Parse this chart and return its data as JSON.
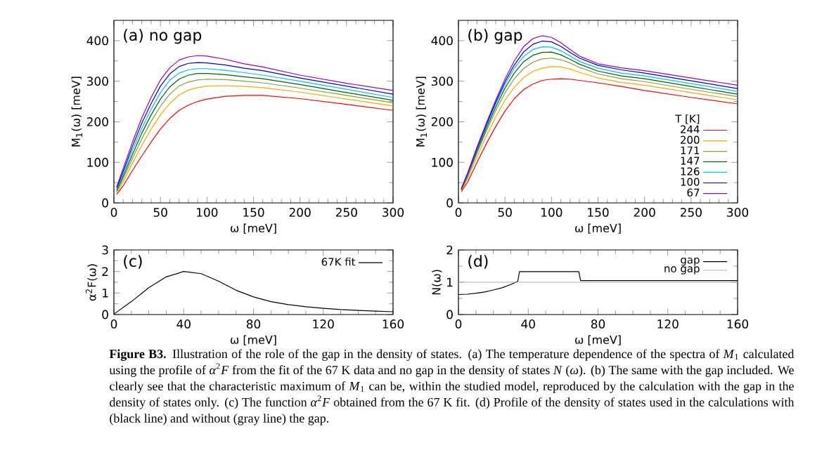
{
  "chart_data": [
    {
      "type": "line",
      "title": "(a) no gap",
      "xlabel": "ω [meV]",
      "ylabel": "M$_{1}$(ω) [meV]",
      "xlim": [
        0,
        300
      ],
      "ylim": [
        0,
        450
      ],
      "xticks": [
        0,
        50,
        100,
        150,
        200,
        250,
        300
      ],
      "yticks": [
        0,
        100,
        200,
        300,
        400
      ],
      "grid": false,
      "legend": false,
      "marker": "none",
      "line_style": "solid",
      "x": [
        3,
        10,
        20,
        30,
        40,
        50,
        60,
        70,
        80,
        90,
        100,
        120,
        140,
        160,
        200,
        250,
        300
      ],
      "series": [
        {
          "color": "#ff0000",
          "values": [
            21,
            42,
            80,
            116,
            150,
            182,
            208,
            228,
            241,
            250,
            256,
            263,
            265,
            265,
            257,
            243,
            228
          ]
        },
        {
          "color": "#ffa500",
          "values": [
            25,
            53,
            98,
            142,
            182,
            217,
            245,
            266,
            278,
            284,
            288,
            289,
            287,
            284,
            273,
            256,
            239
          ]
        },
        {
          "color": "#80a040",
          "values": [
            28,
            60,
            110,
            158,
            201,
            238,
            268,
            288,
            298,
            303,
            305,
            304,
            300,
            296,
            283,
            265,
            247
          ]
        },
        {
          "color": "#006400",
          "values": [
            31,
            66,
            120,
            172,
            217,
            256,
            286,
            305,
            315,
            319,
            319,
            316,
            311,
            306,
            292,
            272,
            253
          ]
        },
        {
          "color": "#00bfff",
          "values": [
            34,
            72,
            130,
            184,
            231,
            272,
            302,
            320,
            328,
            331,
            331,
            327,
            321,
            315,
            300,
            280,
            260
          ]
        },
        {
          "color": "#0000cd",
          "values": [
            37,
            78,
            140,
            197,
            245,
            288,
            318,
            336,
            344,
            346,
            345,
            340,
            332,
            326,
            308,
            288,
            268
          ]
        },
        {
          "color": "#9400d3",
          "values": [
            40,
            85,
            150,
            210,
            260,
            303,
            333,
            352,
            360,
            363,
            362,
            354,
            343,
            335,
            315,
            295,
            277
          ]
        }
      ],
      "annotations": [
        "**Figure B3.** Illustration of the role of the gap in the density of states. (a) The temperature dependence of the spectra of *M*$_{1}$ calculated using the profile of *α*$^{2}$*F* from the fit of the 67 K data and no gap in the density of states *N* (*ω*). (b) The same with the gap included. We clearly see that the characteristic maximum of *M*$_{1}$ can be, within the studied model, reproduced by the calculation with the gap in the density of states only. (c) The function *α*$^{2}$*F* obtained from the 67 K fit. (d) Profile of the density of states used in the calculations with (black line) and without (gray line) the gap."
      ]
    },
    {
      "type": "line",
      "title": "(b) gap",
      "xlabel": "ω [meV]",
      "ylabel": "M$_{1}$(ω) [meV]",
      "legend_title": "T [K]",
      "xlim": [
        0,
        300
      ],
      "ylim": [
        0,
        450
      ],
      "xticks": [
        0,
        50,
        100,
        150,
        200,
        250,
        300
      ],
      "yticks": [
        0,
        100,
        200,
        300,
        400
      ],
      "grid": false,
      "legend": "bottom right",
      "marker": "none",
      "line_style": "solid",
      "x": [
        3,
        10,
        20,
        30,
        40,
        50,
        60,
        70,
        80,
        90,
        100,
        110,
        120,
        130,
        150,
        175,
        200,
        250,
        300
      ],
      "series": [
        {
          "name": "244",
          "color": "#ff0000",
          "values": [
            27,
            52,
            100,
            146,
            188,
            226,
            257,
            279,
            293,
            302,
            305,
            306,
            305,
            302,
            296,
            287,
            277,
            260,
            244
          ]
        },
        {
          "name": "200",
          "color": "#ffa500",
          "values": [
            29,
            61,
            114,
            165,
            212,
            253,
            285,
            309,
            324,
            332,
            336,
            335,
            330,
            322,
            308,
            297,
            290,
            272,
            254
          ]
        },
        {
          "name": "171",
          "color": "#80a040",
          "values": [
            31,
            66,
            123,
            177,
            227,
            271,
            306,
            331,
            347,
            355,
            357,
            353,
            345,
            334,
            318,
            306,
            299,
            280,
            262
          ]
        },
        {
          "name": "147",
          "color": "#006400",
          "values": [
            32,
            69,
            128,
            184,
            236,
            283,
            320,
            348,
            364,
            371,
            372,
            365,
            354,
            342,
            325,
            313,
            306,
            287,
            268
          ]
        },
        {
          "name": "126",
          "color": "#00bfff",
          "values": [
            33,
            71,
            132,
            189,
            243,
            292,
            332,
            361,
            378,
            385,
            384,
            375,
            362,
            349,
            332,
            320,
            313,
            294,
            275
          ]
        },
        {
          "name": "100",
          "color": "#0000cd",
          "values": [
            34,
            73,
            135,
            193,
            248,
            298,
            340,
            372,
            391,
            399,
            397,
            386,
            371,
            357,
            339,
            328,
            320,
            301,
            282
          ]
        },
        {
          "name": "67",
          "color": "#9400d3",
          "values": [
            35,
            75,
            138,
            197,
            253,
            305,
            350,
            385,
            405,
            412,
            408,
            395,
            378,
            362,
            343,
            333,
            326,
            308,
            290
          ]
        }
      ]
    },
    {
      "type": "line",
      "title": "(c)",
      "xlabel": "ω [meV]",
      "ylabel": "α$^{2}$F(ω)",
      "xlim": [
        0,
        160
      ],
      "ylim": [
        0,
        3
      ],
      "xticks": [
        0,
        40,
        80,
        120,
        160
      ],
      "yticks": [
        0,
        1,
        2,
        3
      ],
      "grid": false,
      "legend": "top right",
      "marker": "none",
      "line_style": "solid",
      "x": [
        0,
        10,
        20,
        30,
        40,
        50,
        60,
        70,
        80,
        90,
        100,
        110,
        120,
        130,
        140,
        150,
        160
      ],
      "series": [
        {
          "name": "67K fit",
          "color": "#000000",
          "values": [
            0.02,
            0.6,
            1.25,
            1.75,
            2.0,
            1.9,
            1.55,
            1.13,
            0.82,
            0.6,
            0.46,
            0.36,
            0.29,
            0.23,
            0.19,
            0.16,
            0.13
          ]
        }
      ]
    },
    {
      "type": "line",
      "title": "(d)",
      "xlabel": "ω [meV]",
      "ylabel": "N(ω)",
      "xlim": [
        0,
        160
      ],
      "ylim": [
        0,
        2
      ],
      "xticks": [
        0,
        40,
        80,
        120,
        160
      ],
      "yticks": [
        0,
        1,
        2
      ],
      "grid": false,
      "legend": "top right",
      "marker": "none",
      "line_style": "solid",
      "series": [
        {
          "name": "gap",
          "color": "#000000",
          "x": [
            0,
            5,
            10,
            15,
            20,
            25,
            30,
            34,
            35,
            69,
            70,
            160
          ],
          "values": [
            0.62,
            0.63,
            0.66,
            0.7,
            0.76,
            0.83,
            0.93,
            1.03,
            1.33,
            1.33,
            1.05,
            1.05
          ]
        },
        {
          "name": "no gap",
          "color": "#b0b0b0",
          "x": [
            0,
            160
          ],
          "values": [
            1,
            1
          ]
        }
      ]
    }
  ]
}
